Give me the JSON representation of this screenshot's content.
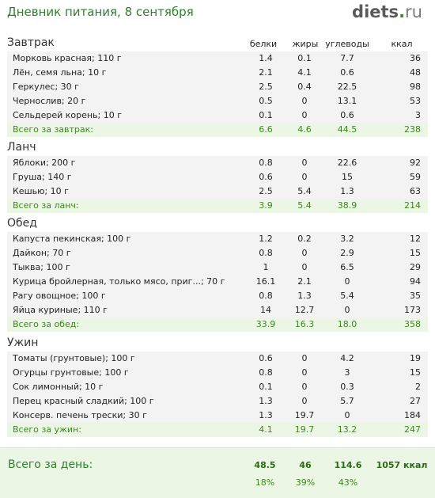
{
  "header": {
    "title": "Дневник питания, 8 сентября",
    "logo_part1": "diets",
    "logo_part2": ".",
    "logo_part3": "ru"
  },
  "columns": {
    "protein": "белки",
    "fat": "жиры",
    "carbs": "углеводы",
    "kcal": "ккал"
  },
  "meals": [
    {
      "title": "Завтрак",
      "items": [
        {
          "name": "Морковь красная; 110 г",
          "protein": "1.4",
          "fat": "0.1",
          "carbs": "7.7",
          "kcal": "36"
        },
        {
          "name": "Лён, семя льна; 10 г",
          "protein": "2.1",
          "fat": "4.1",
          "carbs": "0.6",
          "kcal": "48"
        },
        {
          "name": "Геркулес; 30 г",
          "protein": "2.5",
          "fat": "0.4",
          "carbs": "22.5",
          "kcal": "98"
        },
        {
          "name": "Чернослив; 20 г",
          "protein": "0.5",
          "fat": "0",
          "carbs": "13.1",
          "kcal": "53"
        },
        {
          "name": "Сельдерей корень; 10 г",
          "protein": "0.1",
          "fat": "0",
          "carbs": "0.6",
          "kcal": "3"
        }
      ],
      "total": {
        "name": "Всего за завтрак:",
        "protein": "6.6",
        "fat": "4.6",
        "carbs": "44.5",
        "kcal": "238"
      }
    },
    {
      "title": "Ланч",
      "items": [
        {
          "name": "Яблоки; 200 г",
          "protein": "0.8",
          "fat": "0",
          "carbs": "22.6",
          "kcal": "92"
        },
        {
          "name": "Груша; 140 г",
          "protein": "0.6",
          "fat": "0",
          "carbs": "15",
          "kcal": "59"
        },
        {
          "name": "Кешью; 10 г",
          "protein": "2.5",
          "fat": "5.4",
          "carbs": "1.3",
          "kcal": "63"
        }
      ],
      "total": {
        "name": "Всего за ланч:",
        "protein": "3.9",
        "fat": "5.4",
        "carbs": "38.9",
        "kcal": "214"
      }
    },
    {
      "title": "Обед",
      "items": [
        {
          "name": "Капуста пекинская; 100 г",
          "protein": "1.2",
          "fat": "0.2",
          "carbs": "3.2",
          "kcal": "12"
        },
        {
          "name": "Дайкон; 70 г",
          "protein": "0.8",
          "fat": "0",
          "carbs": "2.9",
          "kcal": "15"
        },
        {
          "name": "Тыква; 100 г",
          "protein": "1",
          "fat": "0",
          "carbs": "6.5",
          "kcal": "29"
        },
        {
          "name": "Курица бройлерная, только мясо, приг...; 70 г",
          "protein": "16.1",
          "fat": "2.1",
          "carbs": "0",
          "kcal": "94"
        },
        {
          "name": "Рагу овощное; 100 г",
          "protein": "0.8",
          "fat": "1.3",
          "carbs": "5.4",
          "kcal": "35"
        },
        {
          "name": "Яйца куриные; 110 г",
          "protein": "14",
          "fat": "12.7",
          "carbs": "0",
          "kcal": "173"
        }
      ],
      "total": {
        "name": "Всего за обед:",
        "protein": "33.9",
        "fat": "16.3",
        "carbs": "18.0",
        "kcal": "358"
      }
    },
    {
      "title": "Ужин",
      "items": [
        {
          "name": "Томаты (грунтовые); 100 г",
          "protein": "0.6",
          "fat": "0",
          "carbs": "4.2",
          "kcal": "19"
        },
        {
          "name": "Огурцы грунтовые; 100 г",
          "protein": "0.8",
          "fat": "0",
          "carbs": "3",
          "kcal": "15"
        },
        {
          "name": "Сок лимонный; 10 г",
          "protein": "0.1",
          "fat": "0",
          "carbs": "0.3",
          "kcal": "2"
        },
        {
          "name": "Перец красный сладкий; 100 г",
          "protein": "1.3",
          "fat": "0",
          "carbs": "5.7",
          "kcal": "27"
        },
        {
          "name": "Консерв. печень трески; 30 г",
          "protein": "1.3",
          "fat": "19.7",
          "carbs": "0",
          "kcal": "184"
        }
      ],
      "total": {
        "name": "Всего за ужин:",
        "protein": "4.1",
        "fat": "19.7",
        "carbs": "13.2",
        "kcal": "247"
      }
    }
  ],
  "day_total": {
    "label": "Всего за день:",
    "protein": "48.5",
    "fat": "46",
    "carbs": "114.6",
    "kcal": "1057 ккал",
    "protein_pct": "18%",
    "fat_pct": "39%",
    "carbs_pct": "43%"
  },
  "colors": {
    "accent_green": "#3a8a1a",
    "title_green": "#2f7f2f",
    "item_bg": "#f3f3f3",
    "total_bg": "#ecf6e4"
  }
}
